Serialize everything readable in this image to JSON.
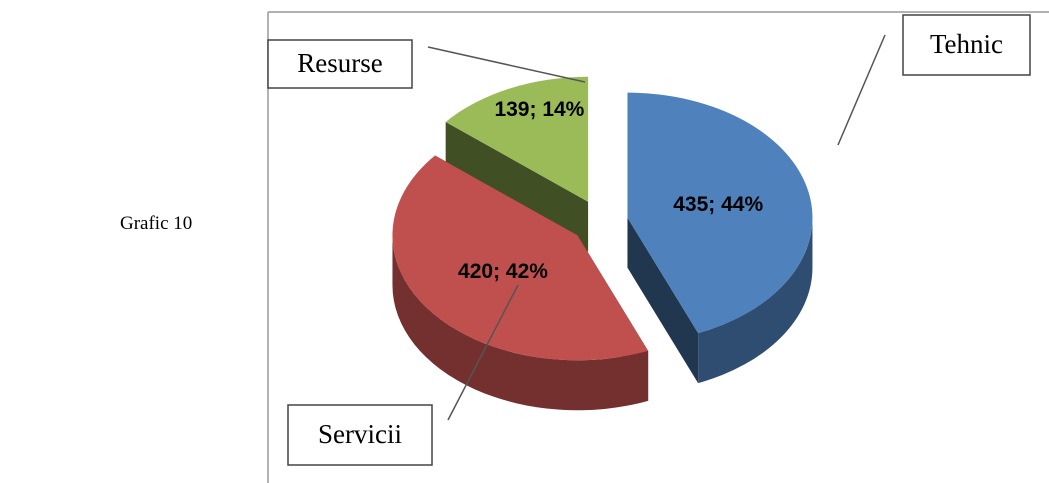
{
  "caption": "Grafic 10",
  "chart_data": {
    "type": "pie",
    "categories": [
      "Tehnic",
      "Servicii",
      "Resurse"
    ],
    "values": [
      435,
      420,
      139
    ],
    "value_labels": [
      "435; 44%",
      "420; 42%",
      "139; 14%"
    ],
    "colors": [
      "#4f81bd",
      "#c0504d",
      "#9bbb59"
    ]
  }
}
